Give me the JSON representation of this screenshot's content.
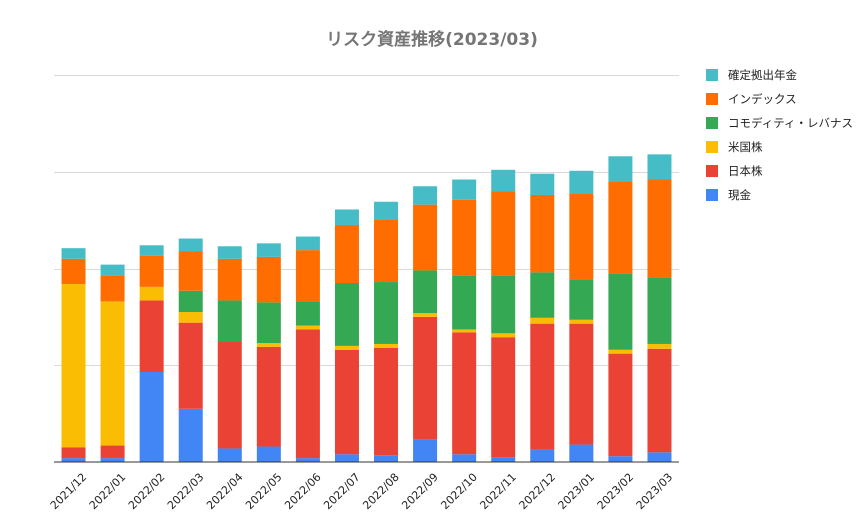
{
  "chart_data": {
    "type": "bar",
    "stacked": true,
    "title": "リスク資産推移(2023/03)",
    "categories": [
      "2021/12",
      "2022/01",
      "2022/02",
      "2022/03",
      "2022/04",
      "2022/05",
      "2022/06",
      "2022/07",
      "2022/08",
      "2022/09",
      "2022/10",
      "2022/11",
      "2022/12",
      "2023/01",
      "2023/02",
      "2023/03"
    ],
    "ylim": [
      0,
      4
    ],
    "y_gridlines": [
      0,
      1,
      2,
      3,
      4
    ],
    "y_tick_labels_visible": false,
    "grid": true,
    "legend_position": "right",
    "series": [
      {
        "name": "現金",
        "color": "#4285f4",
        "values": [
          0.04,
          0.04,
          0.93,
          0.55,
          0.14,
          0.16,
          0.04,
          0.08,
          0.07,
          0.23,
          0.08,
          0.05,
          0.13,
          0.18,
          0.06,
          0.1
        ]
      },
      {
        "name": "日本株",
        "color": "#ea4335",
        "values": [
          0.11,
          0.13,
          0.74,
          0.89,
          1.11,
          1.03,
          1.33,
          1.08,
          1.11,
          1.27,
          1.26,
          1.24,
          1.3,
          1.25,
          1.06,
          1.07
        ]
      },
      {
        "name": "米国株",
        "color": "#fbbc04",
        "values": [
          1.69,
          1.49,
          0.14,
          0.11,
          0.0,
          0.04,
          0.04,
          0.04,
          0.04,
          0.04,
          0.03,
          0.04,
          0.06,
          0.04,
          0.04,
          0.05
        ]
      },
      {
        "name": "コモディティ・レバナス",
        "color": "#34a853",
        "values": [
          0.0,
          0.0,
          0.0,
          0.22,
          0.42,
          0.42,
          0.25,
          0.65,
          0.64,
          0.44,
          0.56,
          0.6,
          0.47,
          0.42,
          0.79,
          0.69
        ]
      },
      {
        "name": "インデックス",
        "color": "#ff6d01",
        "values": [
          0.26,
          0.27,
          0.32,
          0.41,
          0.43,
          0.47,
          0.53,
          0.6,
          0.65,
          0.68,
          0.78,
          0.87,
          0.8,
          0.88,
          0.95,
          1.01
        ]
      },
      {
        "name": "確定拠出年金",
        "color": "#46bdc6",
        "values": [
          0.11,
          0.11,
          0.11,
          0.13,
          0.13,
          0.14,
          0.14,
          0.16,
          0.18,
          0.19,
          0.21,
          0.22,
          0.22,
          0.24,
          0.26,
          0.26
        ]
      }
    ]
  }
}
